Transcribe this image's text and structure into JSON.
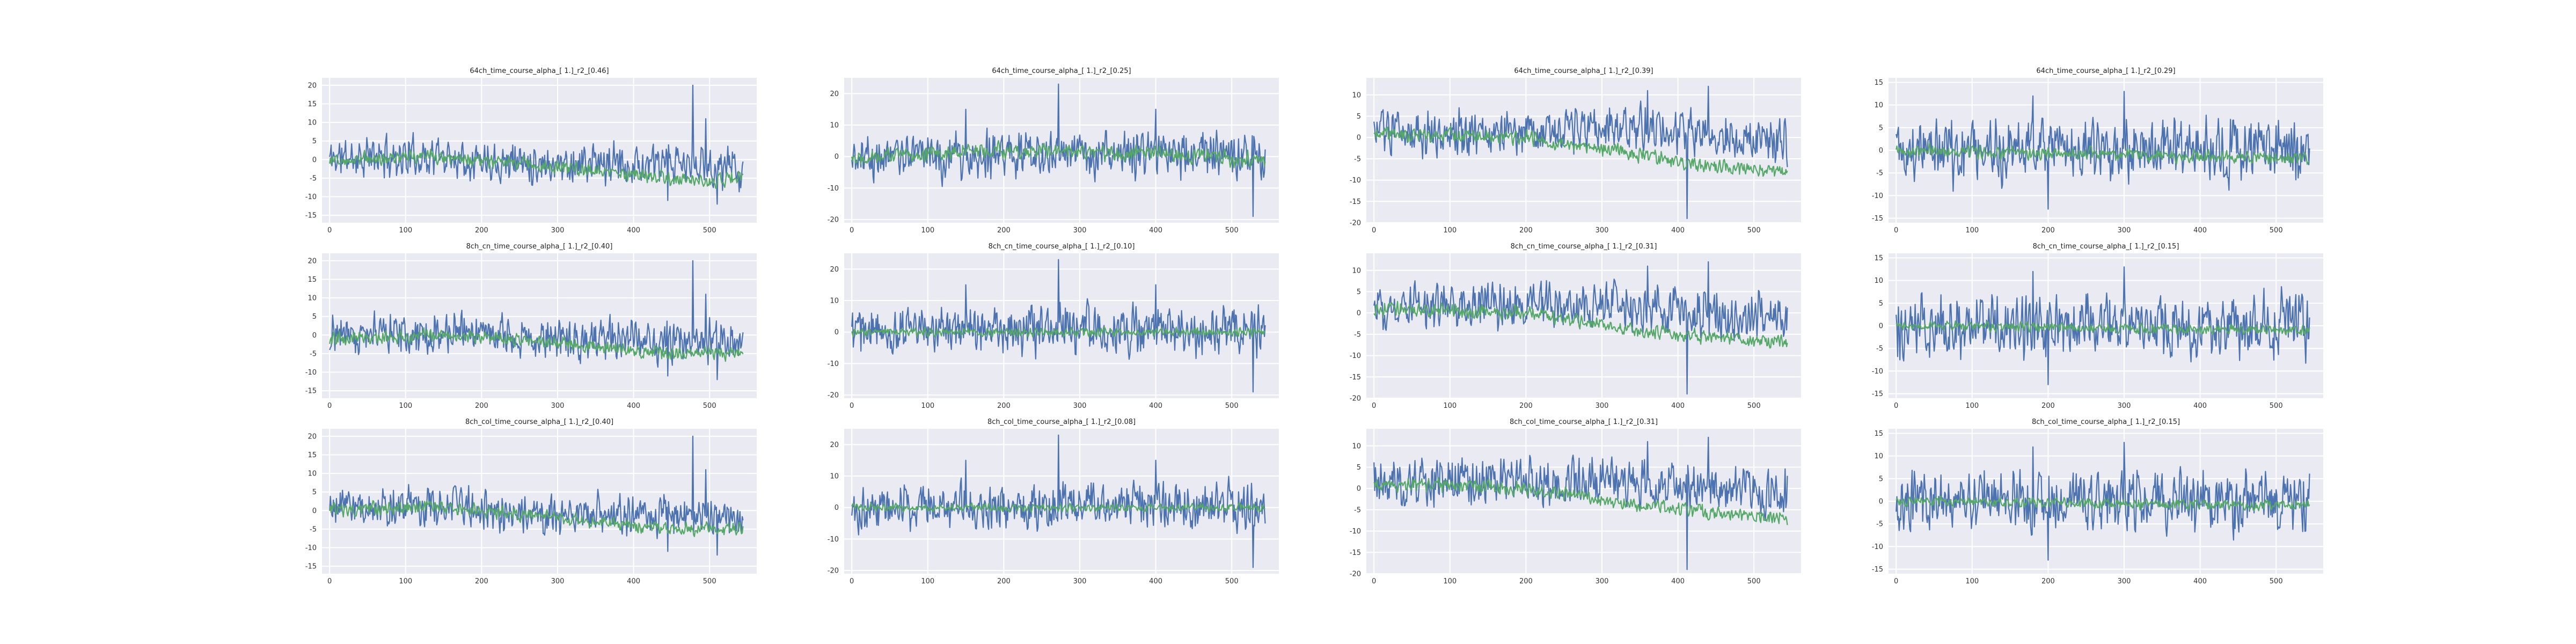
{
  "figure": {
    "colors": {
      "series_a": "#4c72b0",
      "series_b": "#55a868",
      "panel_bg": "#eaeaf2",
      "grid": "#ffffff"
    }
  },
  "chart_data": [
    {
      "id": "p00",
      "type": "line",
      "title": "64ch_time_course_alpha_[ 1.]_r2_[0.46]",
      "xlim": [
        -10,
        562
      ],
      "ylim": [
        -17,
        22
      ],
      "xticks": [
        0,
        100,
        200,
        300,
        400,
        500
      ],
      "yticks": [
        -15,
        -10,
        -5,
        0,
        5,
        10,
        15,
        20
      ],
      "grid": true,
      "series": [
        {
          "color": "#4c72b0",
          "n": 545,
          "seed": 11,
          "amp": 4.0,
          "base": [
            [
              0,
              0.5
            ],
            [
              150,
              1.0
            ],
            [
              300,
              -1.0
            ],
            [
              420,
              -1.5
            ],
            [
              544,
              -2.0
            ]
          ],
          "spikes": [
            [
              478,
              20
            ],
            [
              495,
              11
            ],
            [
              510,
              -12
            ],
            [
              445,
              -11
            ]
          ]
        },
        {
          "color": "#55a868",
          "n": 545,
          "seed": 12,
          "amp": 1.3,
          "base": [
            [
              0,
              0.0
            ],
            [
              120,
              1.0
            ],
            [
              250,
              -1.0
            ],
            [
              400,
              -4.0
            ],
            [
              500,
              -6.0
            ],
            [
              544,
              -4.5
            ]
          ],
          "spikes": []
        }
      ]
    },
    {
      "id": "p01",
      "type": "line",
      "title": "64ch_time_course_alpha_[ 1.]_r2_[0.25]",
      "xlim": [
        -10,
        562
      ],
      "ylim": [
        -21,
        25
      ],
      "xticks": [
        0,
        100,
        200,
        300,
        400,
        500
      ],
      "yticks": [
        -20,
        -10,
        0,
        10,
        20
      ],
      "grid": true,
      "series": [
        {
          "color": "#4c72b0",
          "n": 545,
          "seed": 21,
          "amp": 5.5,
          "base": [
            [
              0,
              0.0
            ],
            [
              272,
              1.0
            ],
            [
              544,
              0.0
            ]
          ],
          "spikes": [
            [
              272,
              23
            ],
            [
              528,
              -19
            ],
            [
              150,
              15
            ],
            [
              400,
              15
            ]
          ]
        },
        {
          "color": "#55a868",
          "n": 545,
          "seed": 22,
          "amp": 1.8,
          "base": [
            [
              0,
              0.0
            ],
            [
              200,
              2.0
            ],
            [
              380,
              1.0
            ],
            [
              544,
              -1.0
            ]
          ],
          "spikes": []
        }
      ]
    },
    {
      "id": "p02",
      "type": "line",
      "title": "64ch_time_course_alpha_[ 1.]_r2_[0.39]",
      "xlim": [
        -10,
        562
      ],
      "ylim": [
        -20,
        14
      ],
      "xticks": [
        0,
        100,
        200,
        300,
        400,
        500
      ],
      "yticks": [
        -20,
        -15,
        -10,
        -5,
        0,
        5,
        10
      ],
      "grid": true,
      "series": [
        {
          "color": "#4c72b0",
          "n": 545,
          "seed": 31,
          "amp": 4.0,
          "base": [
            [
              0,
              1.0
            ],
            [
              300,
              2.0
            ],
            [
              544,
              -1.0
            ]
          ],
          "spikes": [
            [
              412,
              -19
            ],
            [
              440,
              12
            ],
            [
              360,
              11
            ]
          ]
        },
        {
          "color": "#55a868",
          "n": 545,
          "seed": 32,
          "amp": 1.2,
          "base": [
            [
              0,
              1.0
            ],
            [
              200,
              0.0
            ],
            [
              350,
              -4.0
            ],
            [
              450,
              -7.0
            ],
            [
              544,
              -8.0
            ]
          ],
          "spikes": []
        }
      ]
    },
    {
      "id": "p03",
      "type": "line",
      "title": "64ch_time_course_alpha_[ 1.]_r2_[0.29]",
      "xlim": [
        -10,
        562
      ],
      "ylim": [
        -16,
        16
      ],
      "xticks": [
        0,
        100,
        200,
        300,
        400,
        500
      ],
      "yticks": [
        -15,
        -10,
        -5,
        0,
        5,
        10,
        15
      ],
      "grid": true,
      "series": [
        {
          "color": "#4c72b0",
          "n": 545,
          "seed": 41,
          "amp": 5.0,
          "base": [
            [
              0,
              0.0
            ],
            [
              544,
              0.0
            ]
          ],
          "spikes": [
            [
              200,
              -13
            ],
            [
              300,
              13
            ],
            [
              180,
              12
            ]
          ]
        },
        {
          "color": "#55a868",
          "n": 545,
          "seed": 42,
          "amp": 1.0,
          "base": [
            [
              0,
              0.0
            ],
            [
              300,
              -1.0
            ],
            [
              544,
              -2.0
            ]
          ],
          "spikes": []
        }
      ]
    },
    {
      "id": "p10",
      "type": "line",
      "title": "8ch_cn_time_course_alpha_[ 1.]_r2_[0.40]",
      "xlim": [
        -10,
        562
      ],
      "ylim": [
        -17,
        22
      ],
      "xticks": [
        0,
        100,
        200,
        300,
        400,
        500
      ],
      "yticks": [
        -15,
        -10,
        -5,
        0,
        5,
        10,
        15,
        20
      ],
      "grid": true,
      "series": [
        {
          "color": "#4c72b0",
          "n": 545,
          "seed": 51,
          "amp": 4.0,
          "base": [
            [
              0,
              0.5
            ],
            [
              150,
              1.0
            ],
            [
              300,
              -1.0
            ],
            [
              420,
              -1.5
            ],
            [
              544,
              -2.0
            ]
          ],
          "spikes": [
            [
              478,
              20
            ],
            [
              495,
              11
            ],
            [
              510,
              -12
            ],
            [
              445,
              -11
            ]
          ]
        },
        {
          "color": "#55a868",
          "n": 545,
          "seed": 52,
          "amp": 1.3,
          "base": [
            [
              0,
              -1.0
            ],
            [
              150,
              0.0
            ],
            [
              300,
              -2.0
            ],
            [
              450,
              -5.0
            ],
            [
              544,
              -5.0
            ]
          ],
          "spikes": []
        }
      ]
    },
    {
      "id": "p11",
      "type": "line",
      "title": "8ch_cn_time_course_alpha_[ 1.]_r2_[0.10]",
      "xlim": [
        -10,
        562
      ],
      "ylim": [
        -21,
        25
      ],
      "xticks": [
        0,
        100,
        200,
        300,
        400,
        500
      ],
      "yticks": [
        -20,
        -10,
        0,
        10,
        20
      ],
      "grid": true,
      "series": [
        {
          "color": "#4c72b0",
          "n": 545,
          "seed": 61,
          "amp": 5.5,
          "base": [
            [
              0,
              0.0
            ],
            [
              272,
              1.0
            ],
            [
              544,
              0.0
            ]
          ],
          "spikes": [
            [
              272,
              23
            ],
            [
              528,
              -19
            ],
            [
              150,
              15
            ],
            [
              400,
              15
            ]
          ]
        },
        {
          "color": "#55a868",
          "n": 545,
          "seed": 62,
          "amp": 1.0,
          "base": [
            [
              0,
              0.0
            ],
            [
              544,
              0.0
            ]
          ],
          "spikes": []
        }
      ]
    },
    {
      "id": "p12",
      "type": "line",
      "title": "8ch_cn_time_course_alpha_[ 1.]_r2_[0.31]",
      "xlim": [
        -10,
        562
      ],
      "ylim": [
        -20,
        14
      ],
      "xticks": [
        0,
        100,
        200,
        300,
        400,
        500
      ],
      "yticks": [
        -20,
        -15,
        -10,
        -5,
        0,
        5,
        10
      ],
      "grid": true,
      "series": [
        {
          "color": "#4c72b0",
          "n": 545,
          "seed": 71,
          "amp": 4.0,
          "base": [
            [
              0,
              1.0
            ],
            [
              300,
              2.0
            ],
            [
              544,
              -1.0
            ]
          ],
          "spikes": [
            [
              412,
              -19
            ],
            [
              440,
              12
            ],
            [
              360,
              11
            ]
          ]
        },
        {
          "color": "#55a868",
          "n": 545,
          "seed": 72,
          "amp": 1.2,
          "base": [
            [
              0,
              1.0
            ],
            [
              200,
              0.0
            ],
            [
              350,
              -4.0
            ],
            [
              450,
              -6.0
            ],
            [
              544,
              -7.0
            ]
          ],
          "spikes": []
        }
      ]
    },
    {
      "id": "p13",
      "type": "line",
      "title": "8ch_cn_time_course_alpha_[ 1.]_r2_[0.15]",
      "xlim": [
        -10,
        562
      ],
      "ylim": [
        -16,
        16
      ],
      "xticks": [
        0,
        100,
        200,
        300,
        400,
        500
      ],
      "yticks": [
        -15,
        -10,
        -5,
        0,
        5,
        10,
        15
      ],
      "grid": true,
      "series": [
        {
          "color": "#4c72b0",
          "n": 545,
          "seed": 81,
          "amp": 5.0,
          "base": [
            [
              0,
              0.0
            ],
            [
              544,
              0.0
            ]
          ],
          "spikes": [
            [
              200,
              -13
            ],
            [
              300,
              13
            ],
            [
              180,
              12
            ]
          ]
        },
        {
          "color": "#55a868",
          "n": 545,
          "seed": 82,
          "amp": 0.8,
          "base": [
            [
              0,
              0.0
            ],
            [
              544,
              -1.0
            ]
          ],
          "spikes": []
        }
      ]
    },
    {
      "id": "p20",
      "type": "line",
      "title": "8ch_col_time_course_alpha_[ 1.]_r2_[0.40]",
      "xlim": [
        -10,
        562
      ],
      "ylim": [
        -17,
        22
      ],
      "xticks": [
        0,
        100,
        200,
        300,
        400,
        500
      ],
      "yticks": [
        -15,
        -10,
        -5,
        0,
        5,
        10,
        15,
        20
      ],
      "grid": true,
      "series": [
        {
          "color": "#4c72b0",
          "n": 545,
          "seed": 91,
          "amp": 4.0,
          "base": [
            [
              0,
              0.5
            ],
            [
              150,
              1.0
            ],
            [
              300,
              -1.0
            ],
            [
              420,
              -1.5
            ],
            [
              544,
              -2.0
            ]
          ],
          "spikes": [
            [
              478,
              20
            ],
            [
              495,
              11
            ],
            [
              510,
              -12
            ],
            [
              445,
              -11
            ]
          ]
        },
        {
          "color": "#55a868",
          "n": 545,
          "seed": 92,
          "amp": 1.3,
          "base": [
            [
              0,
              0.0
            ],
            [
              150,
              1.0
            ],
            [
              300,
              -2.0
            ],
            [
              450,
              -5.0
            ],
            [
              544,
              -5.0
            ]
          ],
          "spikes": []
        }
      ]
    },
    {
      "id": "p21",
      "type": "line",
      "title": "8ch_col_time_course_alpha_[ 1.]_r2_[0.08]",
      "xlim": [
        -10,
        562
      ],
      "ylim": [
        -21,
        25
      ],
      "xticks": [
        0,
        100,
        200,
        300,
        400,
        500
      ],
      "yticks": [
        -20,
        -10,
        0,
        10,
        20
      ],
      "grid": true,
      "series": [
        {
          "color": "#4c72b0",
          "n": 545,
          "seed": 101,
          "amp": 5.5,
          "base": [
            [
              0,
              0.0
            ],
            [
              272,
              1.0
            ],
            [
              544,
              0.0
            ]
          ],
          "spikes": [
            [
              272,
              23
            ],
            [
              528,
              -19
            ],
            [
              150,
              15
            ],
            [
              400,
              15
            ]
          ]
        },
        {
          "color": "#55a868",
          "n": 545,
          "seed": 102,
          "amp": 0.9,
          "base": [
            [
              0,
              0.0
            ],
            [
              544,
              0.0
            ]
          ],
          "spikes": []
        }
      ]
    },
    {
      "id": "p22",
      "type": "line",
      "title": "8ch_col_time_course_alpha_[ 1.]_r2_[0.31]",
      "xlim": [
        -10,
        562
      ],
      "ylim": [
        -20,
        14
      ],
      "xticks": [
        0,
        100,
        200,
        300,
        400,
        500
      ],
      "yticks": [
        -20,
        -15,
        -10,
        -5,
        0,
        5,
        10
      ],
      "grid": true,
      "series": [
        {
          "color": "#4c72b0",
          "n": 545,
          "seed": 111,
          "amp": 4.0,
          "base": [
            [
              0,
              1.0
            ],
            [
              300,
              2.0
            ],
            [
              544,
              -1.0
            ]
          ],
          "spikes": [
            [
              412,
              -19
            ],
            [
              440,
              12
            ],
            [
              360,
              11
            ]
          ]
        },
        {
          "color": "#55a868",
          "n": 545,
          "seed": 112,
          "amp": 1.2,
          "base": [
            [
              0,
              1.0
            ],
            [
              200,
              0.0
            ],
            [
              350,
              -4.0
            ],
            [
              450,
              -6.0
            ],
            [
              544,
              -7.0
            ]
          ],
          "spikes": []
        }
      ]
    },
    {
      "id": "p23",
      "type": "line",
      "title": "8ch_col_time_course_alpha_[ 1.]_r2_[0.15]",
      "xlim": [
        -10,
        562
      ],
      "ylim": [
        -16,
        16
      ],
      "xticks": [
        0,
        100,
        200,
        300,
        400,
        500
      ],
      "yticks": [
        -15,
        -10,
        -5,
        0,
        5,
        10,
        15
      ],
      "grid": true,
      "series": [
        {
          "color": "#4c72b0",
          "n": 545,
          "seed": 121,
          "amp": 5.0,
          "base": [
            [
              0,
              0.0
            ],
            [
              544,
              0.0
            ]
          ],
          "spikes": [
            [
              200,
              -13
            ],
            [
              300,
              13
            ],
            [
              180,
              12
            ]
          ]
        },
        {
          "color": "#55a868",
          "n": 545,
          "seed": 122,
          "amp": 0.8,
          "base": [
            [
              0,
              0.0
            ],
            [
              544,
              -1.0
            ]
          ],
          "spikes": []
        }
      ]
    }
  ]
}
